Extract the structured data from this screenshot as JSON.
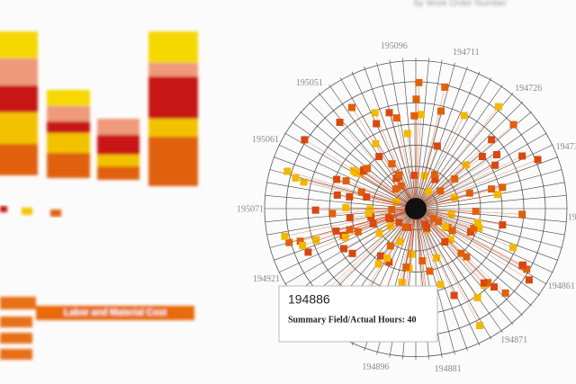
{
  "header": {
    "title": "by Work Order Number"
  },
  "bar_panel": {
    "colors": [
      "#e0600c",
      "#f2c200",
      "#c81414",
      "#ef9a7a",
      "#f5d800"
    ],
    "bars": [
      {
        "segments": [
          35,
          35,
          30,
          30,
          30
        ]
      },
      {
        "segments": [
          28,
          22,
          13,
          17,
          18
        ]
      },
      {
        "segments": [
          15,
          13,
          22,
          18
        ]
      },
      {
        "segments": [
          55,
          20,
          47,
          15,
          35
        ]
      }
    ]
  },
  "radial": {
    "labels": [
      "195096",
      "194711",
      "194726",
      "194736",
      "194741",
      "194861",
      "194871",
      "194881",
      "194896",
      "194911",
      "194921",
      "195071",
      "195061",
      "195051"
    ]
  },
  "tooltip": {
    "title": "194886",
    "text": "Summary Field/Actual Hours: 40"
  },
  "table": {
    "header": "Labor and Material Cost"
  }
}
